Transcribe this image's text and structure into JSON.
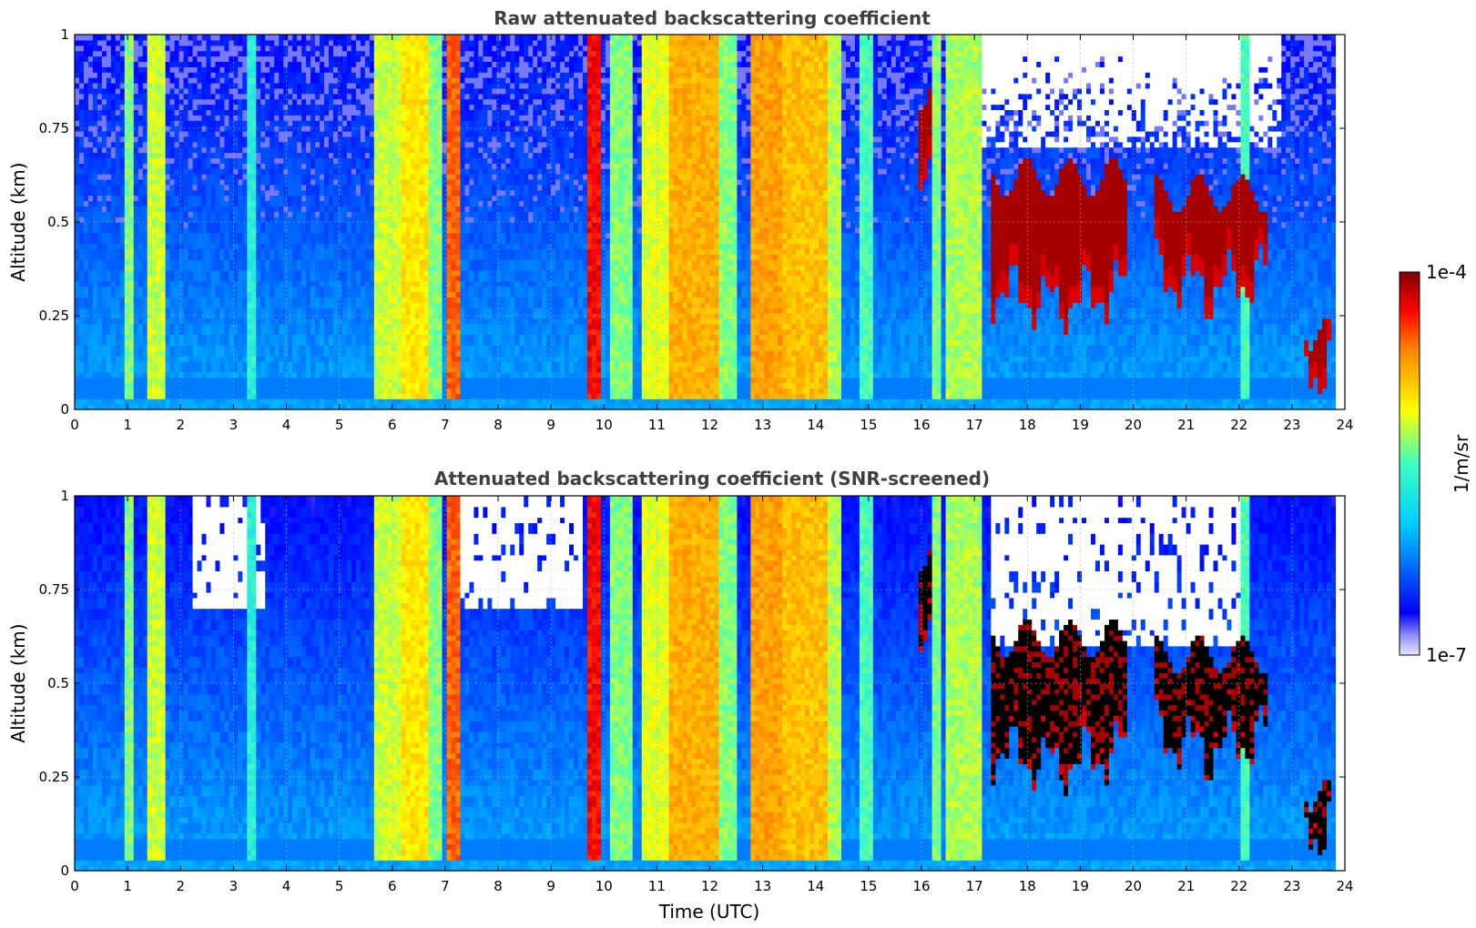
{
  "chart_data": [
    {
      "type": "heatmap",
      "title": "Raw attenuated backscattering coefficient",
      "xlabel": "",
      "ylabel": "Altitude (km)",
      "xlim": [
        0,
        24
      ],
      "ylim": [
        0,
        1
      ],
      "x_ticks": [
        "0",
        "1",
        "2",
        "3",
        "4",
        "5",
        "6",
        "7",
        "8",
        "9",
        "10",
        "11",
        "12",
        "13",
        "14",
        "15",
        "16",
        "17",
        "18",
        "19",
        "20",
        "21",
        "22",
        "23",
        "24"
      ],
      "y_ticks": [
        "0",
        "0.25",
        "0.5",
        "0.75",
        "1"
      ],
      "grid": true,
      "screened": false
    },
    {
      "type": "heatmap",
      "title": "Attenuated backscattering coefficient (SNR-screened)",
      "xlabel": "Time (UTC)",
      "ylabel": "Altitude (km)",
      "xlim": [
        0,
        24
      ],
      "ylim": [
        0,
        1
      ],
      "x_ticks": [
        "0",
        "1",
        "2",
        "3",
        "4",
        "5",
        "6",
        "7",
        "8",
        "9",
        "10",
        "11",
        "12",
        "13",
        "14",
        "15",
        "16",
        "17",
        "18",
        "19",
        "20",
        "21",
        "22",
        "23",
        "24"
      ],
      "y_ticks": [
        "0",
        "0.25",
        "0.5",
        "0.75",
        "1"
      ],
      "grid": true,
      "screened": true
    }
  ],
  "colorbar": {
    "label": "1/m/sr",
    "max_label": "1e-4",
    "min_label": "1e-7",
    "scale": "log",
    "range": [
      1e-07,
      0.0001
    ],
    "colormap": "jet"
  },
  "field": {
    "data_end_utc": 23.8,
    "surface_layer_top_km": 0.03,
    "rain_columns": [
      {
        "t0": 0.98,
        "t1": 1.08,
        "level": 0.55
      },
      {
        "t0": 1.4,
        "t1": 1.72,
        "level": 0.6
      },
      {
        "t0": 3.28,
        "t1": 3.4,
        "level": 0.45
      },
      {
        "t0": 5.65,
        "t1": 6.2,
        "level": 0.6
      },
      {
        "t0": 6.2,
        "t1": 6.7,
        "level": 0.67
      },
      {
        "t0": 6.7,
        "t1": 6.95,
        "level": 0.55
      },
      {
        "t0": 7.05,
        "t1": 7.3,
        "level": 0.82
      },
      {
        "t0": 9.65,
        "t1": 9.95,
        "level": 0.9
      },
      {
        "t0": 10.15,
        "t1": 10.5,
        "level": 0.55
      },
      {
        "t0": 10.7,
        "t1": 11.2,
        "level": 0.62
      },
      {
        "t0": 11.2,
        "t1": 12.2,
        "level": 0.74
      },
      {
        "t0": 12.2,
        "t1": 12.5,
        "level": 0.55
      },
      {
        "t0": 12.75,
        "t1": 13.4,
        "level": 0.76
      },
      {
        "t0": 13.4,
        "t1": 14.2,
        "level": 0.72
      },
      {
        "t0": 14.2,
        "t1": 14.5,
        "level": 0.58
      },
      {
        "t0": 14.8,
        "t1": 15.1,
        "level": 0.5
      },
      {
        "t0": 16.2,
        "t1": 16.4,
        "level": 0.55
      },
      {
        "t0": 16.45,
        "t1": 17.15,
        "level": 0.58
      },
      {
        "t0": 22.0,
        "t1": 22.2,
        "level": 0.5
      }
    ],
    "cloud_layers": [
      {
        "t0": 15.9,
        "t1": 16.2,
        "base_km": 0.65,
        "top_km": 0.85
      },
      {
        "t0": 17.3,
        "t1": 19.9,
        "base_km": 0.28,
        "top_km": 0.62
      },
      {
        "t0": 20.4,
        "t1": 22.5,
        "base_km": 0.32,
        "top_km": 0.58
      },
      {
        "t0": 23.25,
        "t1": 23.75,
        "base_km": 0.09,
        "top_km": 0.2
      }
    ]
  }
}
